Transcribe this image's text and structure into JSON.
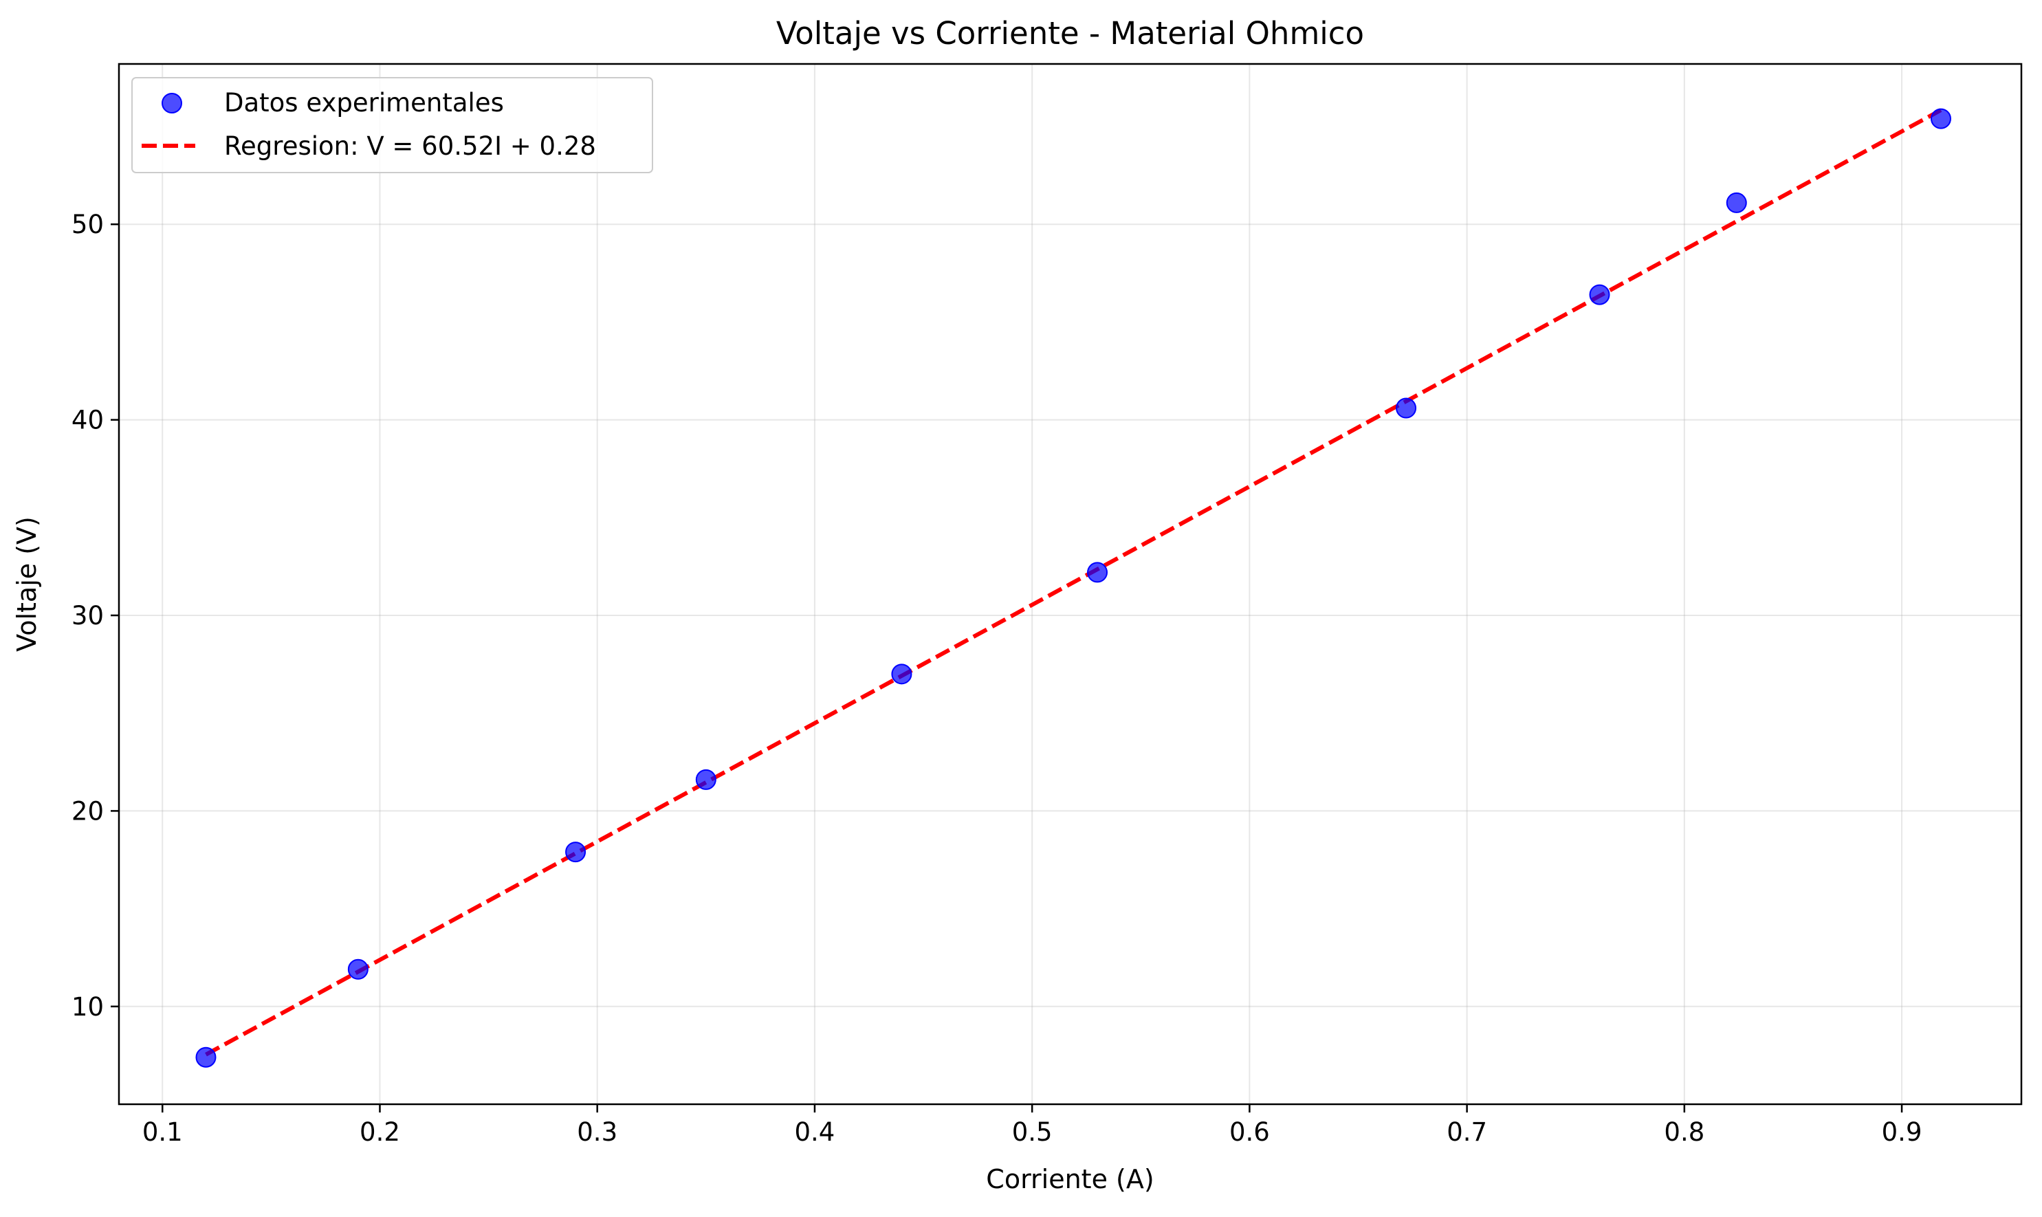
{
  "chart_data": {
    "type": "scatter",
    "title": "Voltaje vs Corriente - Material Ohmico",
    "xlabel": "Corriente (A)",
    "ylabel": "Voltaje (V)",
    "xlim": [
      0.08,
      0.955
    ],
    "ylim": [
      5,
      58.2
    ],
    "x_ticks": [
      0.1,
      0.2,
      0.3,
      0.4,
      0.5,
      0.6,
      0.7,
      0.8,
      0.9
    ],
    "x_tick_labels": [
      "0.1",
      "0.2",
      "0.3",
      "0.4",
      "0.5",
      "0.6",
      "0.7",
      "0.8",
      "0.9"
    ],
    "y_ticks": [
      10,
      20,
      30,
      40,
      50
    ],
    "y_tick_labels": [
      "10",
      "20",
      "30",
      "40",
      "50"
    ],
    "grid": true,
    "legend_position": "top-left",
    "series": [
      {
        "name": "Datos experimentales",
        "kind": "scatter",
        "color": "#0000ff",
        "x": [
          0.12,
          0.19,
          0.29,
          0.35,
          0.44,
          0.53,
          0.672,
          0.761,
          0.824,
          0.918
        ],
        "y": [
          7.4,
          11.9,
          17.9,
          21.6,
          27.0,
          32.2,
          40.6,
          46.4,
          51.1,
          55.4
        ]
      },
      {
        "name": "Regresion: V = 60.52I + 0.28",
        "kind": "line",
        "style": "dashed",
        "color": "#ff0000",
        "x": [
          0.12,
          0.918
        ],
        "y": [
          7.54,
          55.84
        ]
      }
    ]
  }
}
